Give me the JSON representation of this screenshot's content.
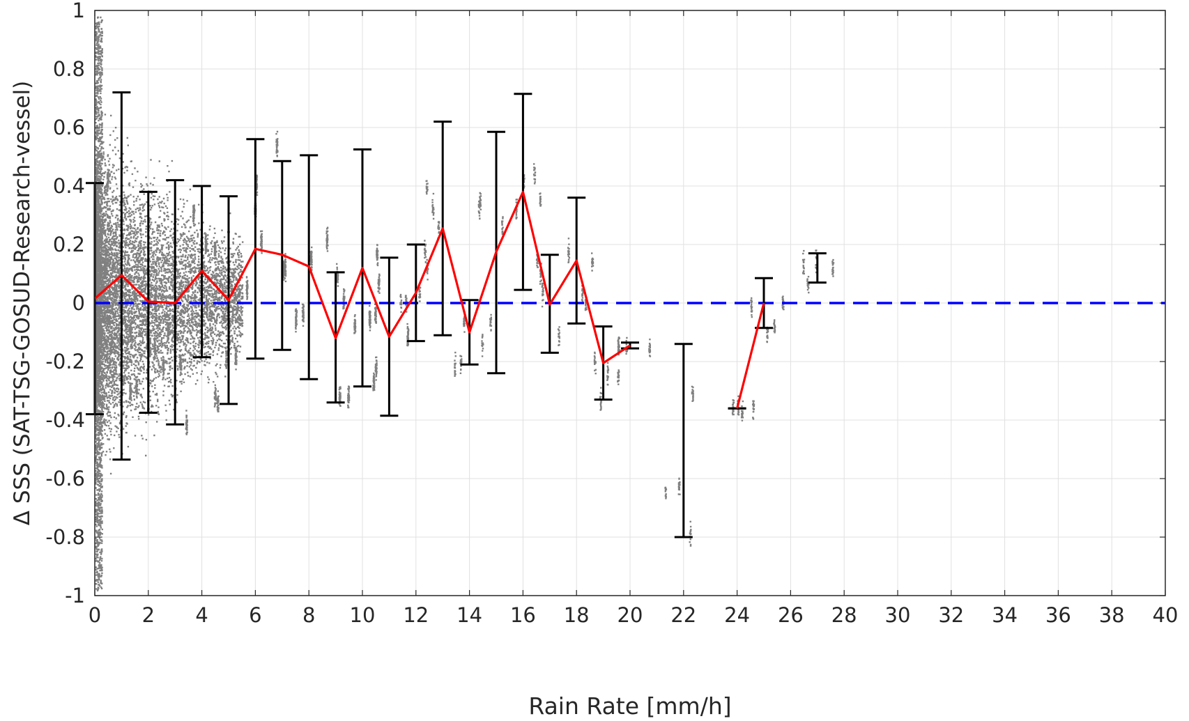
{
  "chart_data": {
    "type": "line",
    "title": "",
    "xlabel": "Rain Rate [mm/h]",
    "ylabel": "Δ SSS (SAT-TSG-GOSUD-Research-vessel)",
    "xlim": [
      0,
      40
    ],
    "ylim": [
      -1,
      1
    ],
    "xticks": [
      0,
      2,
      4,
      6,
      8,
      10,
      12,
      14,
      16,
      18,
      20,
      22,
      24,
      26,
      28,
      30,
      32,
      34,
      36,
      38,
      40
    ],
    "yticks": [
      -1,
      -0.8,
      -0.6,
      -0.4,
      -0.2,
      0,
      0.2,
      0.4,
      0.6,
      0.8,
      1
    ],
    "ytick_labels": [
      "-1",
      "-0.8",
      "-0.6",
      "-0.4",
      "-0.2",
      "0",
      "0.2",
      "0.4",
      "0.6",
      "0.8",
      "1"
    ],
    "grid": true,
    "colors": {
      "mean_line": "#ff0000",
      "error_bars": "#000000",
      "zero_line": "#0000ff",
      "scatter": "#808080",
      "grid": "#e0e0e0"
    },
    "series": [
      {
        "type": "errorbar",
        "color": "#000000",
        "points": [
          {
            "x": 0,
            "mean": 0.015,
            "low": -0.38,
            "high": 0.41
          },
          {
            "x": 1,
            "mean": 0.095,
            "low": -0.535,
            "high": 0.72
          },
          {
            "x": 2,
            "mean": 0.005,
            "low": -0.375,
            "high": 0.38
          },
          {
            "x": 3,
            "mean": 0.0,
            "low": -0.415,
            "high": 0.42
          },
          {
            "x": 4,
            "mean": 0.11,
            "low": -0.185,
            "high": 0.4
          },
          {
            "x": 5,
            "mean": 0.01,
            "low": -0.345,
            "high": 0.365
          },
          {
            "x": 6,
            "mean": 0.185,
            "low": -0.19,
            "high": 0.56
          },
          {
            "x": 7,
            "mean": 0.165,
            "low": -0.16,
            "high": 0.485
          },
          {
            "x": 8,
            "mean": 0.125,
            "low": -0.26,
            "high": 0.505
          },
          {
            "x": 9,
            "mean": -0.12,
            "low": -0.34,
            "high": 0.105
          },
          {
            "x": 10,
            "mean": 0.12,
            "low": -0.285,
            "high": 0.525
          },
          {
            "x": 11,
            "mean": -0.115,
            "low": -0.385,
            "high": 0.155
          },
          {
            "x": 12,
            "mean": 0.035,
            "low": -0.13,
            "high": 0.2
          },
          {
            "x": 13,
            "mean": 0.255,
            "low": -0.11,
            "high": 0.62
          },
          {
            "x": 14,
            "mean": -0.1,
            "low": -0.21,
            "high": 0.01
          },
          {
            "x": 15,
            "mean": 0.175,
            "low": -0.24,
            "high": 0.585
          },
          {
            "x": 16,
            "mean": 0.38,
            "low": 0.045,
            "high": 0.715
          },
          {
            "x": 17,
            "mean": -0.005,
            "low": -0.17,
            "high": 0.165
          },
          {
            "x": 18,
            "mean": 0.145,
            "low": -0.07,
            "high": 0.36
          },
          {
            "x": 19,
            "mean": -0.205,
            "low": -0.33,
            "high": -0.08
          },
          {
            "x": 20,
            "mean": -0.145,
            "low": -0.155,
            "high": -0.135
          },
          {
            "x": 22,
            "mean": null,
            "low": -0.8,
            "high": -0.14
          },
          {
            "x": 24,
            "mean": -0.36,
            "low": -0.36,
            "high": -0.36
          },
          {
            "x": 25,
            "mean": 0.0,
            "low": -0.085,
            "high": 0.085
          },
          {
            "x": 27,
            "mean": null,
            "low": 0.07,
            "high": 0.17
          }
        ]
      },
      {
        "type": "line",
        "style": "dashed",
        "color": "#0000ff",
        "x": [
          0,
          40
        ],
        "y": [
          0,
          0
        ]
      }
    ],
    "scatter_note": "dense grey scatter of individual differences concentrated at rain rates 0-5 mm/h, sparse vertical clusters at higher rain rates"
  }
}
